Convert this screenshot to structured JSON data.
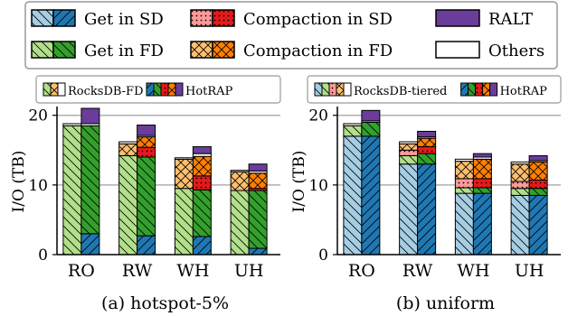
{
  "legend": {
    "items": [
      {
        "label": "Get in SD",
        "kind": "get_sd"
      },
      {
        "label": "Compaction in SD",
        "kind": "comp_sd"
      },
      {
        "label": "RALT",
        "kind": "ralt"
      },
      {
        "label": "Get in FD",
        "kind": "get_fd"
      },
      {
        "label": "Compaction in FD",
        "kind": "comp_fd"
      },
      {
        "label": "Others",
        "kind": "others"
      }
    ]
  },
  "colors": {
    "get_sd_light": "#a6cee3",
    "get_sd_dark": "#1f78b4",
    "get_fd_light": "#b2df8a",
    "get_fd_dark": "#33a02c",
    "comp_sd_light": "#fb9a99",
    "comp_sd_dark": "#e31a1c",
    "comp_fd_light": "#fdbf6f",
    "comp_fd_dark": "#ff7f00",
    "ralt": "#6a3d9a",
    "others": "#ffffff"
  },
  "chart_data": [
    {
      "type": "bar",
      "title": "(a) hotspot-5%",
      "ylabel": "I/O (TB)",
      "ylim": [
        0,
        21
      ],
      "yticks": [
        0,
        10,
        20
      ],
      "categories": [
        "RO",
        "RW",
        "WH",
        "UH"
      ],
      "mini_legend": [
        {
          "label": "RocksDB-FD",
          "kinds": [
            "get_fd",
            "comp_fd",
            "others"
          ],
          "shade": "light"
        },
        {
          "label": "HotRAP",
          "kinds": [
            "get_sd",
            "get_fd",
            "comp_sd",
            "comp_fd",
            "ralt"
          ],
          "shade": "dark"
        }
      ],
      "series": [
        {
          "name": "RocksDB-FD",
          "stacks": [
            {
              "get_sd": 0,
              "get_fd": 18.5,
              "comp_sd": 0,
              "comp_fd": 0,
              "ralt": 0,
              "others": 0.3
            },
            {
              "get_sd": 0,
              "get_fd": 14.2,
              "comp_sd": 0,
              "comp_fd": 1.7,
              "ralt": 0,
              "others": 0.3
            },
            {
              "get_sd": 0,
              "get_fd": 9.5,
              "comp_sd": 0,
              "comp_fd": 4.2,
              "ralt": 0,
              "others": 0.2
            },
            {
              "get_sd": 0,
              "get_fd": 9.2,
              "comp_sd": 0,
              "comp_fd": 2.7,
              "ralt": 0,
              "others": 0.2
            }
          ]
        },
        {
          "name": "HotRAP",
          "stacks": [
            {
              "get_sd": 3.0,
              "get_fd": 15.5,
              "comp_sd": 0,
              "comp_fd": 0,
              "ralt": 2.2,
              "others": 0.3
            },
            {
              "get_sd": 2.7,
              "get_fd": 11.3,
              "comp_sd": 1.4,
              "comp_fd": 1.5,
              "ralt": 1.5,
              "others": 0.2
            },
            {
              "get_sd": 2.6,
              "get_fd": 6.7,
              "comp_sd": 2.0,
              "comp_fd": 2.8,
              "ralt": 1.0,
              "others": 0.4
            },
            {
              "get_sd": 0.9,
              "get_fd": 8.3,
              "comp_sd": 0.3,
              "comp_fd": 2.2,
              "ralt": 1.0,
              "others": 0.3
            }
          ]
        }
      ]
    },
    {
      "type": "bar",
      "title": "(b) uniform",
      "ylabel": "I/O (TB)",
      "ylim": [
        0,
        21
      ],
      "yticks": [
        0,
        10,
        20
      ],
      "categories": [
        "RO",
        "RW",
        "WH",
        "UH"
      ],
      "mini_legend": [
        {
          "label": "RocksDB-tiered",
          "kinds": [
            "get_sd",
            "get_fd",
            "comp_sd",
            "comp_fd",
            "others"
          ],
          "shade": "light"
        },
        {
          "label": "HotRAP",
          "kinds": [
            "get_sd",
            "get_fd",
            "comp_sd",
            "comp_fd",
            "ralt"
          ],
          "shade": "dark"
        }
      ],
      "series": [
        {
          "name": "RocksDB-tiered",
          "stacks": [
            {
              "get_sd": 17.0,
              "get_fd": 1.5,
              "comp_sd": 0,
              "comp_fd": 0,
              "ralt": 0,
              "others": 0.3
            },
            {
              "get_sd": 13.0,
              "get_fd": 1.2,
              "comp_sd": 0.8,
              "comp_fd": 0.9,
              "ralt": 0,
              "others": 0.3
            },
            {
              "get_sd": 8.8,
              "get_fd": 0.8,
              "comp_sd": 1.3,
              "comp_fd": 2.5,
              "ralt": 0,
              "others": 0.3
            },
            {
              "get_sd": 8.5,
              "get_fd": 1.0,
              "comp_sd": 1.0,
              "comp_fd": 2.5,
              "ralt": 0,
              "others": 0.3
            }
          ]
        },
        {
          "name": "HotRAP",
          "stacks": [
            {
              "get_sd": 17.0,
              "get_fd": 2.0,
              "comp_sd": 0,
              "comp_fd": 0,
              "ralt": 1.5,
              "others": 0.2
            },
            {
              "get_sd": 13.0,
              "get_fd": 1.5,
              "comp_sd": 1.0,
              "comp_fd": 1.2,
              "ralt": 0.8,
              "others": 0.2
            },
            {
              "get_sd": 8.8,
              "get_fd": 0.8,
              "comp_sd": 1.3,
              "comp_fd": 2.8,
              "ralt": 0.5,
              "others": 0.3
            },
            {
              "get_sd": 8.5,
              "get_fd": 1.0,
              "comp_sd": 1.2,
              "comp_fd": 2.6,
              "ralt": 0.7,
              "others": 0.2
            }
          ]
        }
      ]
    }
  ]
}
